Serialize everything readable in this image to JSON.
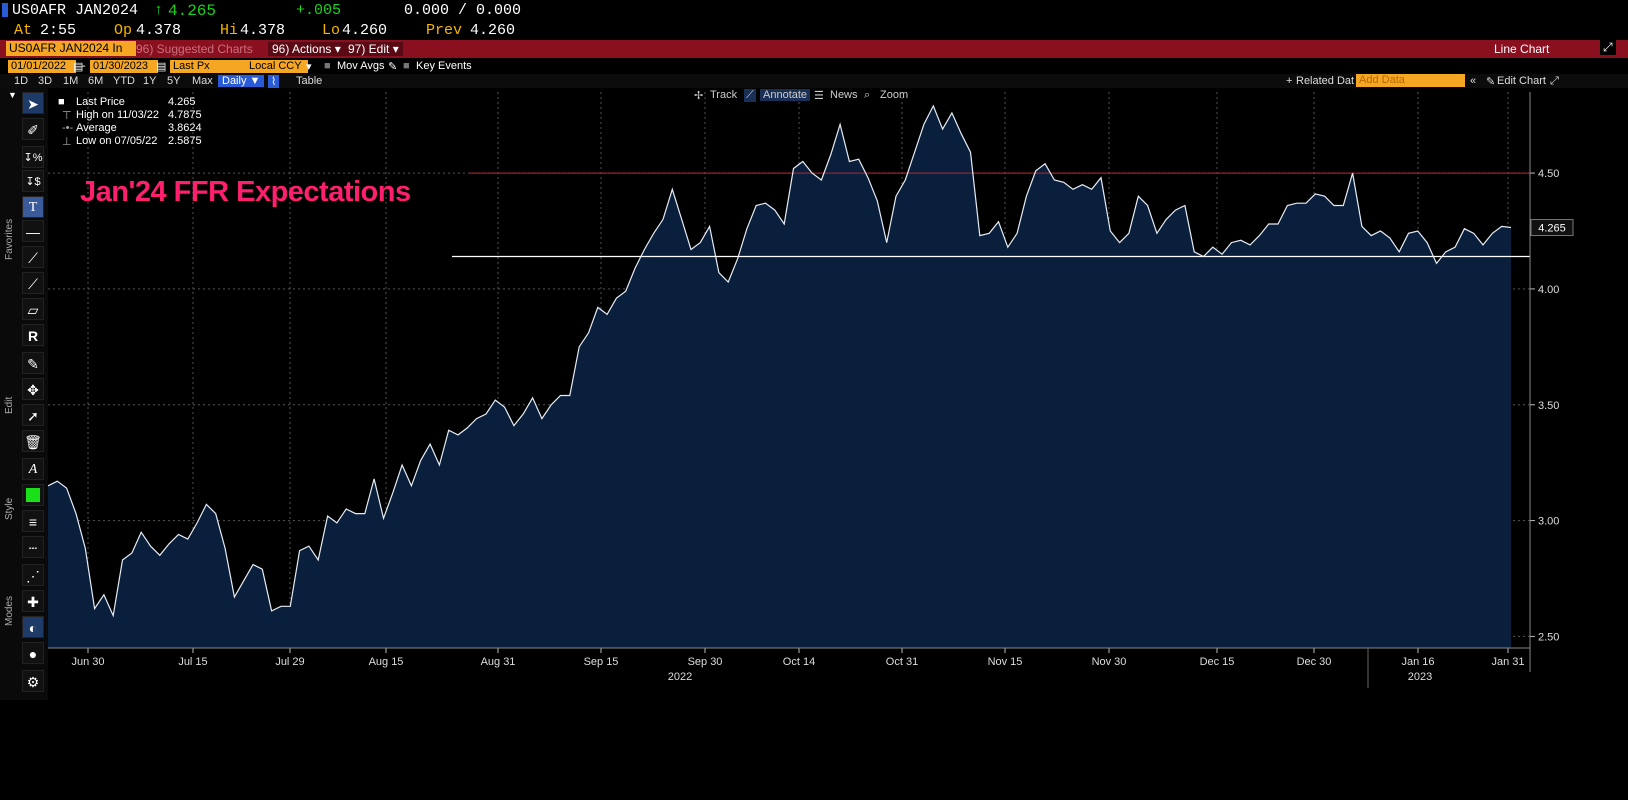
{
  "header": {
    "ticker": "US0AFR JAN2024",
    "last": "4.265",
    "change": "+.005",
    "bidask": "0.000 / 0.000",
    "time_label": "At",
    "time": "2:55",
    "open_label": "Op",
    "open": "4.378",
    "high_label": "Hi",
    "high": "4.378",
    "low_label": "Lo",
    "low": "4.260",
    "prev_label": "Prev",
    "prev": "4.260",
    "up_color": "#19d219"
  },
  "menubar": {
    "security": "US0AFR JAN2024 In",
    "suggested": "96) Suggested Charts",
    "actions": "96) Actions ▾",
    "edit": "97) Edit ▾",
    "view": "Line Chart",
    "bar_color": "#8a1020"
  },
  "toolbar": {
    "start_date": "01/01/2022",
    "end_date": "01/30/2023",
    "field": "Last Px",
    "currency": "Local CCY",
    "mov_avgs": "Mov Avgs",
    "key_events": "Key Events",
    "periods": [
      "1D",
      "3D",
      "1M",
      "6M",
      "YTD",
      "1Y",
      "5Y",
      "Max"
    ],
    "frequency": "Daily ▼",
    "table": "Table",
    "related": "Related Dat",
    "add_data": "Add Data",
    "edit_chart": "Edit Chart"
  },
  "modes": {
    "track": "Track",
    "annotate": "Annotate",
    "news": "News",
    "zoom": "Zoom"
  },
  "left_tabs": {
    "favorites": "Favorites",
    "edit": "Edit",
    "style": "Style",
    "modes": "Modes"
  },
  "legend": {
    "last_label": "Last Price",
    "last_value": "4.265",
    "high_label": "High on 11/03/22",
    "high_value": "4.7875",
    "avg_label": "Average",
    "avg_value": "3.8624",
    "low_label": "Low on 07/05/22",
    "low_value": "2.5875"
  },
  "annotation": "Jan'24 FFR Expectations",
  "chart_data": {
    "type": "area",
    "ylim": [
      2.45,
      4.85
    ],
    "yticks": [
      2.5,
      3.0,
      3.5,
      4.0,
      4.5
    ],
    "ytick_labels": [
      "2.50",
      "3.00",
      "3.50",
      "4.00",
      "4.50"
    ],
    "xtick_labels": [
      "Jun 30",
      "Jul 15",
      "Jul 29",
      "Aug 15",
      "Aug 31",
      "Sep 15",
      "Sep 30",
      "Oct 14",
      "Oct 31",
      "Nov 15",
      "Nov 30",
      "Dec 15",
      "Dec 30",
      "Jan 16",
      "Jan 31"
    ],
    "year_labels": [
      "2022",
      "2023"
    ],
    "last_value_label": "4.265",
    "hlines": [
      {
        "y": 4.5,
        "color": "#c0202a"
      },
      {
        "y": 4.14,
        "color": "#ffffff"
      }
    ],
    "line_color": "#e6ecf5",
    "fill_color": "#0a1f3c",
    "values": [
      3.15,
      3.17,
      3.14,
      3.03,
      2.88,
      2.62,
      2.68,
      2.59,
      2.83,
      2.86,
      2.95,
      2.89,
      2.85,
      2.9,
      2.94,
      2.92,
      2.99,
      3.07,
      3.03,
      2.88,
      2.67,
      2.74,
      2.81,
      2.79,
      2.61,
      2.63,
      2.63,
      2.87,
      2.89,
      2.83,
      3.02,
      2.99,
      3.05,
      3.03,
      3.03,
      3.18,
      3.01,
      3.12,
      3.24,
      3.15,
      3.26,
      3.33,
      3.24,
      3.39,
      3.37,
      3.4,
      3.44,
      3.46,
      3.52,
      3.49,
      3.41,
      3.46,
      3.53,
      3.44,
      3.5,
      3.54,
      3.54,
      3.75,
      3.81,
      3.92,
      3.89,
      3.96,
      3.99,
      4.09,
      4.17,
      4.24,
      4.3,
      4.43,
      4.3,
      4.17,
      4.2,
      4.27,
      4.07,
      4.03,
      4.13,
      4.26,
      4.36,
      4.37,
      4.34,
      4.28,
      4.52,
      4.55,
      4.5,
      4.47,
      4.58,
      4.71,
      4.55,
      4.56,
      4.48,
      4.38,
      4.2,
      4.4,
      4.47,
      4.59,
      4.71,
      4.79,
      4.69,
      4.76,
      4.67,
      4.59,
      4.23,
      4.24,
      4.29,
      4.18,
      4.24,
      4.4,
      4.51,
      4.54,
      4.47,
      4.46,
      4.43,
      4.45,
      4.43,
      4.48,
      4.25,
      4.2,
      4.24,
      4.4,
      4.36,
      4.24,
      4.3,
      4.34,
      4.36,
      4.16,
      4.14,
      4.18,
      4.15,
      4.2,
      4.21,
      4.19,
      4.23,
      4.28,
      4.28,
      4.36,
      4.37,
      4.37,
      4.41,
      4.4,
      4.36,
      4.36,
      4.5,
      4.27,
      4.23,
      4.25,
      4.22,
      4.16,
      4.24,
      4.25,
      4.2,
      4.11,
      4.16,
      4.18,
      4.26,
      4.24,
      4.19,
      4.24,
      4.27,
      4.265
    ]
  }
}
